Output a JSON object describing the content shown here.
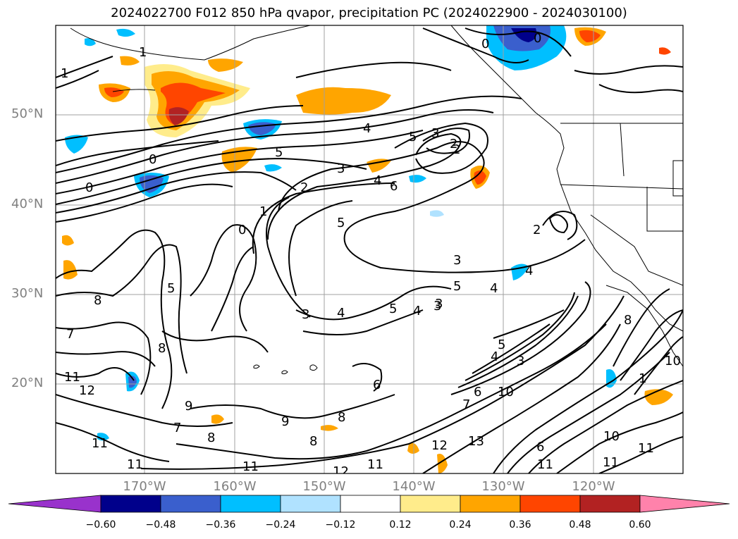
{
  "title": "2024022700 F012 850 hPa qvapor, precipitation PC (2024022900 - 2024030100)",
  "lat_labels": [
    "50°N",
    "40°N",
    "30°N",
    "20°N"
  ],
  "lon_labels": [
    "170°W",
    "160°W",
    "150°W",
    "140°W",
    "130°W",
    "120°W"
  ],
  "colorbar": {
    "colors": [
      "#9932cc",
      "#00008b",
      "#3a5fcd",
      "#00bfff",
      "#b0e2ff",
      "#ffffff",
      "#ffec8b",
      "#ffa500",
      "#ff4500",
      "#b22222",
      "#ff82ab"
    ],
    "tick_labels": [
      "−0.60",
      "−0.48",
      "−0.36",
      "−0.24",
      "−0.12",
      "0.12",
      "0.24",
      "0.36",
      "0.48",
      "0.60"
    ]
  },
  "contour_labels": [
    "1",
    "1",
    "0",
    "0",
    "0",
    "4",
    "5",
    "3",
    "2",
    "3",
    "2",
    "6",
    "4",
    "5",
    "1",
    "0",
    "0",
    "5",
    "3",
    "2",
    "3",
    "5",
    "4",
    "3",
    "4",
    "5",
    "4",
    "8",
    "5",
    "7",
    "9",
    "6",
    "5",
    "3",
    "4",
    "8",
    "11",
    "12",
    "9",
    "7",
    "8",
    "8",
    "6",
    "11",
    "11",
    "8",
    "12",
    "11",
    "13",
    "12",
    "11",
    "10",
    "7",
    "4",
    "3",
    "6",
    "8",
    "10",
    "11",
    "11",
    "10",
    "11",
    "2",
    "1"
  ]
}
